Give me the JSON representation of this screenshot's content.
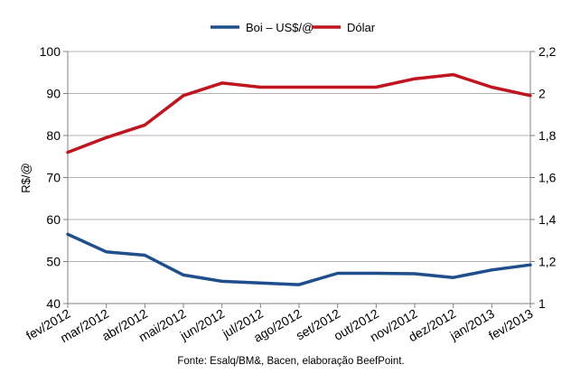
{
  "chart_data": {
    "type": "line",
    "categories": [
      "fev/2012",
      "mar/2012",
      "abr/2012",
      "mai/2012",
      "jun/2012",
      "jul/2012",
      "ago/2012",
      "set/2012",
      "out/2012",
      "nov/2012",
      "dez/2012",
      "jan/2013",
      "fev/2013"
    ],
    "series": [
      {
        "name": "Boi – US$/@",
        "axis": "left",
        "color": "#1f4e8c",
        "values": [
          56.5,
          52.3,
          51.5,
          46.8,
          45.3,
          44.9,
          44.5,
          47.2,
          47.2,
          47.1,
          46.2,
          48.0,
          49.2
        ]
      },
      {
        "name": "Dólar",
        "axis": "right",
        "color": "#c0141e",
        "values": [
          1.72,
          1.79,
          1.85,
          1.99,
          2.05,
          2.03,
          2.03,
          2.03,
          2.03,
          2.07,
          2.09,
          2.03,
          1.99
        ]
      }
    ],
    "ylabel": "R$/@",
    "ylim": [
      40,
      100
    ],
    "yticks": [
      "40",
      "50",
      "60",
      "70",
      "80",
      "90",
      "100"
    ],
    "y2lim": [
      1,
      2.2
    ],
    "y2ticks": [
      "1",
      "1,2",
      "1,4",
      "1,6",
      "1,8",
      "2",
      "2,2"
    ],
    "grid": true,
    "legend": "top-center"
  },
  "source": "Fonte: Esalq/BM&, Bacen, elaboração BeefPoint."
}
